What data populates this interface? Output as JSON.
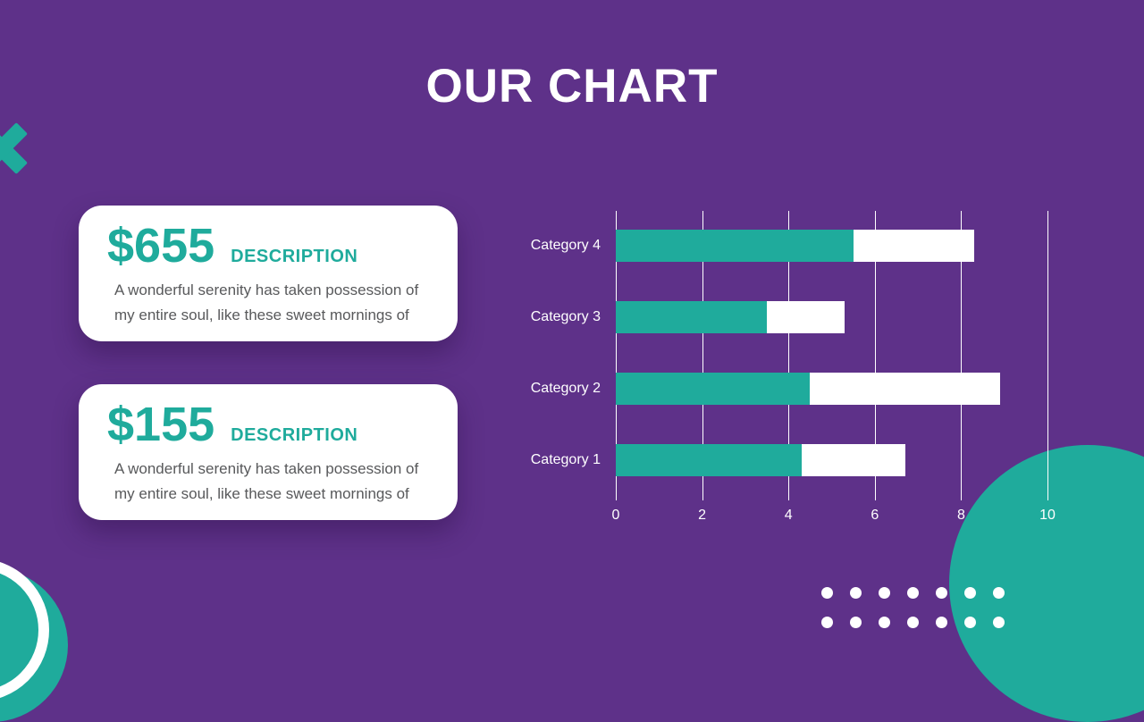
{
  "title": "OUR CHART",
  "cards": [
    {
      "amount": "$655",
      "label": "DESCRIPTION",
      "body": "A wonderful serenity has taken possession of my entire soul, like these sweet mornings of"
    },
    {
      "amount": "$155",
      "label": "DESCRIPTION",
      "body": "A wonderful serenity has taken possession of my entire soul, like these sweet mornings of"
    }
  ],
  "chart_data": {
    "type": "bar",
    "orientation": "horizontal",
    "stacked": true,
    "title": "",
    "xlabel": "",
    "ylabel": "",
    "categories": [
      "Category 4",
      "Category 3",
      "Category 2",
      "Category 1"
    ],
    "series": [
      {
        "name": "series-1-teal",
        "color": "#1FAB9C",
        "values": [
          5.5,
          3.5,
          4.5,
          4.3
        ]
      },
      {
        "name": "series-2-white",
        "color": "#FFFFFF",
        "values": [
          2.8,
          1.8,
          4.4,
          2.4
        ]
      }
    ],
    "totals": [
      8.3,
      5.3,
      8.9,
      6.7
    ],
    "xlim": [
      0,
      10
    ],
    "x_ticks": [
      0,
      2,
      4,
      6,
      8,
      10
    ],
    "grid": "vertical",
    "legend": "none"
  },
  "colors": {
    "background": "#5E3189",
    "accent_teal": "#1FAB9C",
    "card_bg": "#FFFFFF",
    "body_text": "#58595B",
    "chart_text": "#FFFFFF"
  }
}
